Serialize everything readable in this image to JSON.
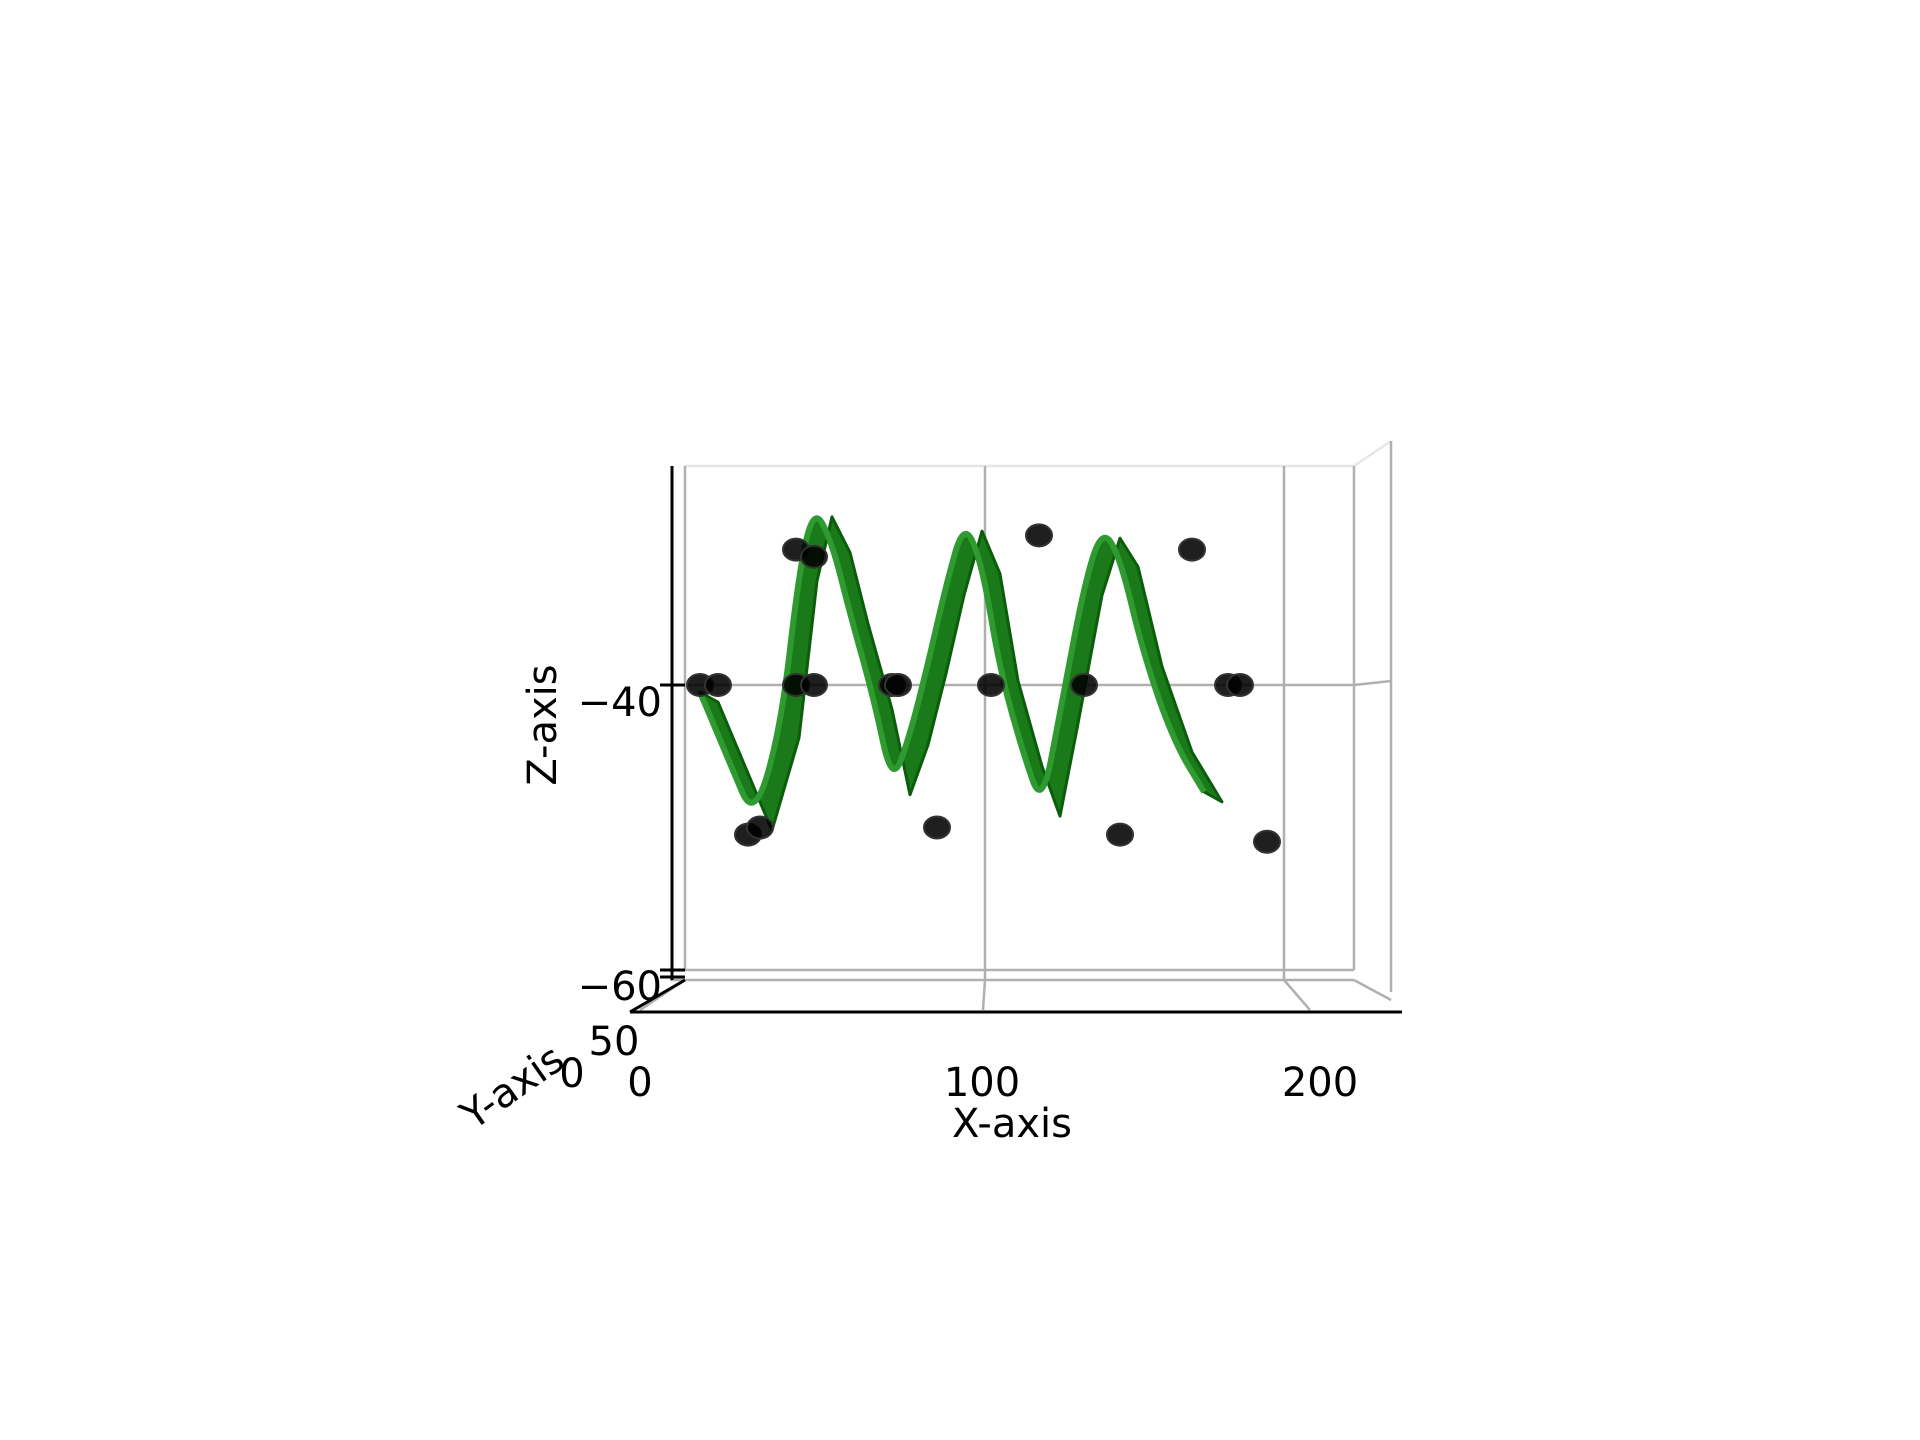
{
  "chart_data": {
    "type": "surface3d",
    "title": "",
    "xlabel": "X-axis",
    "ylabel": "Y-axis",
    "zlabel": "Z-axis",
    "xlim": [
      0,
      220
    ],
    "zlim": [
      -60,
      -25
    ],
    "x_ticks": [
      "0",
      "100",
      "200"
    ],
    "y_ticks": [
      "0",
      "50"
    ],
    "z_ticks": [
      "−40",
      "−60"
    ],
    "grid": true,
    "surface_color": "#1a7a1a",
    "surface_edge_color": "#0b5d0b",
    "marker_color": "#000000",
    "surface_points": [
      [
        8,
        -40.5
      ],
      [
        18,
        -45.5
      ],
      [
        26,
        -49.5
      ],
      [
        35,
        -43
      ],
      [
        41,
        -32
      ],
      [
        46,
        -27.5
      ],
      [
        52,
        -30
      ],
      [
        58,
        -35
      ],
      [
        66,
        -41
      ],
      [
        72,
        -47
      ],
      [
        78,
        -43.5
      ],
      [
        84,
        -38.5
      ],
      [
        90,
        -33
      ],
      [
        96,
        -28.5
      ],
      [
        102,
        -31.5
      ],
      [
        108,
        -39
      ],
      [
        116,
        -45
      ],
      [
        122,
        -48.5
      ],
      [
        128,
        -42
      ],
      [
        136,
        -33
      ],
      [
        142,
        -29
      ],
      [
        148,
        -31
      ],
      [
        156,
        -38
      ],
      [
        166,
        -44
      ],
      [
        176,
        -47.5
      ]
    ],
    "scatter_points": [
      [
        8,
        -40
      ],
      [
        14,
        -40
      ],
      [
        24,
        -50.5
      ],
      [
        28,
        -50
      ],
      [
        40,
        -30.5
      ],
      [
        46,
        -31
      ],
      [
        40,
        -40
      ],
      [
        46,
        -40
      ],
      [
        72,
        -40
      ],
      [
        74,
        -40
      ],
      [
        87,
        -50
      ],
      [
        105,
        -40
      ],
      [
        121,
        -29.5
      ],
      [
        136,
        -40
      ],
      [
        148,
        -50.5
      ],
      [
        172,
        -30.5
      ],
      [
        184,
        -40
      ],
      [
        188,
        -40
      ],
      [
        197,
        -51
      ]
    ]
  }
}
